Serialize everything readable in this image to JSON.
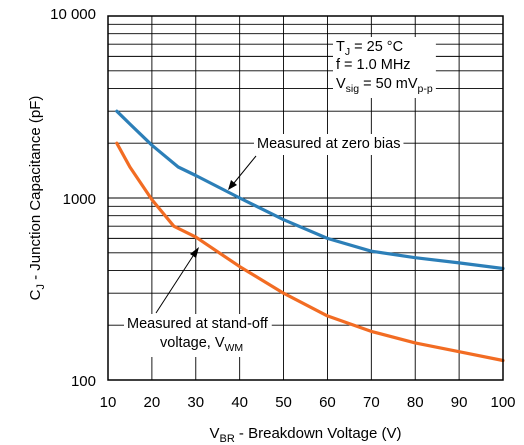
{
  "chart_data": {
    "type": "line",
    "xlabel": {
      "main": "V",
      "sub": "BR",
      "rest": " - Breakdown Voltage (V)"
    },
    "ylabel": {
      "main": "C",
      "sub": "J",
      "rest": " - Junction Capacitance (pF)"
    },
    "x_scale": "linear",
    "y_scale": "log",
    "xlim": [
      10,
      100
    ],
    "ylim": [
      100,
      10000
    ],
    "grid": true,
    "x_ticks": [
      {
        "value": 10,
        "label": "10"
      },
      {
        "value": 20,
        "label": "20"
      },
      {
        "value": 30,
        "label": "30"
      },
      {
        "value": 40,
        "label": "40"
      },
      {
        "value": 50,
        "label": "50"
      },
      {
        "value": 60,
        "label": "60"
      },
      {
        "value": 70,
        "label": "70"
      },
      {
        "value": 80,
        "label": "80"
      },
      {
        "value": 90,
        "label": "90"
      },
      {
        "value": 100,
        "label": "100"
      }
    ],
    "y_ticks": [
      {
        "value": 100,
        "label": "100"
      },
      {
        "value": 1000,
        "label": "1000"
      },
      {
        "value": 10000,
        "label": "10 000"
      }
    ],
    "conditions": {
      "line1": {
        "main": "T",
        "sub": "J",
        "rest": " = 25 °C"
      },
      "line2": "f = 1.0 MHz",
      "line3": {
        "main": "V",
        "sub": "sig",
        "mid": " = 50 mV",
        "sub2": "p-p"
      }
    },
    "series": [
      {
        "name": "Measured at zero bias",
        "color": "#2c7fb8",
        "x": [
          12,
          15,
          20,
          26,
          30,
          40,
          50,
          60,
          70,
          80,
          90,
          100
        ],
        "y": [
          3000,
          2550,
          1950,
          1480,
          1330,
          1000,
          760,
          600,
          510,
          470,
          440,
          410
        ]
      },
      {
        "name": "Measured at stand-off voltage",
        "annotation": {
          "line1": "Measured at stand-off",
          "line2_main": "voltage, V",
          "line2_sub": "WM"
        },
        "color": "#f26c23",
        "x": [
          12,
          15,
          20,
          25,
          30,
          40,
          50,
          60,
          70,
          80,
          90,
          100
        ],
        "y": [
          2000,
          1480,
          980,
          700,
          610,
          420,
          300,
          225,
          185,
          160,
          143,
          128
        ]
      }
    ]
  }
}
